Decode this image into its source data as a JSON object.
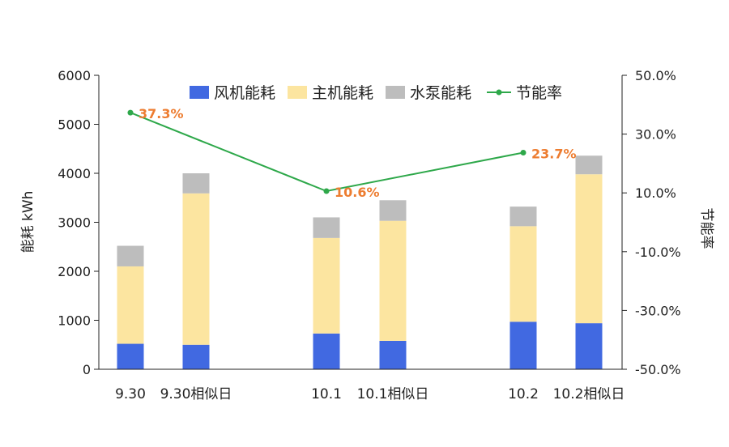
{
  "chart_data": {
    "type": "bar",
    "stacked": true,
    "categories": [
      "9.30",
      "9.30相似日",
      "10.1",
      "10.1相似日",
      "10.2",
      "10.2相似日"
    ],
    "series": [
      {
        "name": "风机能耗",
        "color": "#4169E1",
        "values": [
          520,
          500,
          730,
          580,
          970,
          940
        ]
      },
      {
        "name": "主机能耗",
        "color": "#FCE5A0",
        "values": [
          1580,
          3090,
          1950,
          2450,
          1950,
          3040
        ]
      },
      {
        "name": "水泵能耗",
        "color": "#BDBDBD",
        "values": [
          420,
          410,
          420,
          420,
          400,
          380
        ]
      }
    ],
    "line_series": {
      "name": "节能率",
      "color": "#2EA84A",
      "label_color": "#ED7D31",
      "x_categories": [
        "9.30",
        "10.1",
        "10.2"
      ],
      "values": [
        37.3,
        10.6,
        23.7
      ],
      "labels": [
        "37.3%",
        "10.6%",
        "23.7%"
      ]
    },
    "ylabel": "能耗 kWh",
    "ylim": [
      0,
      6000
    ],
    "y_ticks": [
      "0",
      "1000",
      "2000",
      "3000",
      "4000",
      "5000",
      "6000"
    ],
    "y2label": "节能率",
    "y2lim": [
      -50,
      50
    ],
    "y2_ticks": [
      "-50.0%",
      "-30.0%",
      "-10.0%",
      "10.0%",
      "30.0%",
      "50.0%"
    ],
    "legend_position": "top",
    "grid": false
  }
}
